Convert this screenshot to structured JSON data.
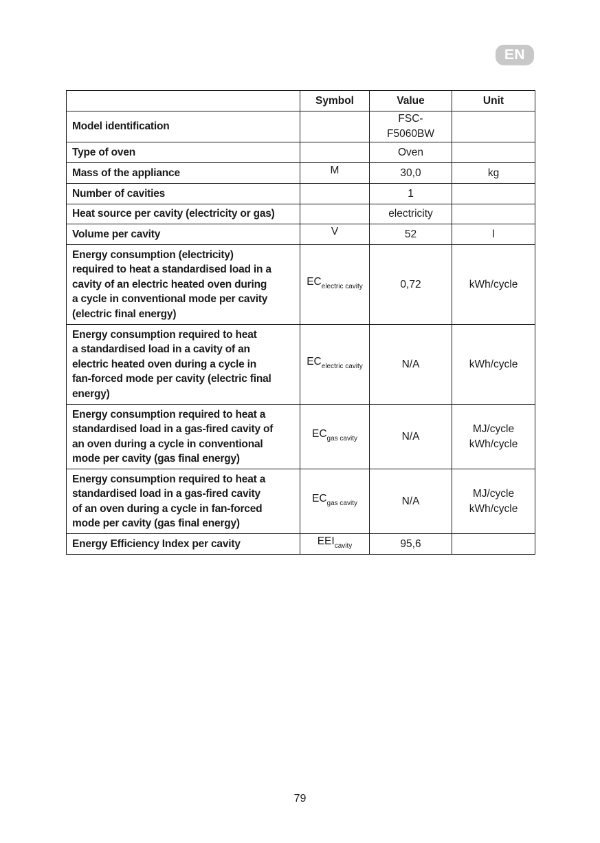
{
  "language_badge": "EN",
  "table": {
    "headers": [
      "",
      "Symbol",
      "Value",
      "Unit"
    ],
    "rows": [
      {
        "label": "Model identification",
        "symbol": "",
        "symbol_sub": "",
        "value": "FSC-F5060BW",
        "unit": ""
      },
      {
        "label": "Type of oven",
        "symbol": "",
        "symbol_sub": "",
        "value": "Oven",
        "unit": ""
      },
      {
        "label": "Mass of the appliance",
        "symbol": "M",
        "symbol_sub": "",
        "value": "30,0",
        "unit": "kg"
      },
      {
        "label": "Number of cavities",
        "symbol": "",
        "symbol_sub": "",
        "value": "1",
        "unit": ""
      },
      {
        "label": "Heat source per cavity (electricity or gas)",
        "symbol": "",
        "symbol_sub": "",
        "value": "electricity",
        "unit": ""
      },
      {
        "label": "Volume per cavity",
        "symbol": "V",
        "symbol_sub": "",
        "value": "52",
        "unit": "l"
      },
      {
        "label": "Energy consumption (electricity)\nrequired to heat a standardised load in a\ncavity of an electric heated oven during\na cycle in conventional mode per cavity\n(electric final energy)",
        "symbol": "EC",
        "symbol_sub": "electric cavity",
        "value": "0,72",
        "unit": "kWh/cycle"
      },
      {
        "label": "Energy consumption required to heat\na standardised load in a cavity of an\nelectric heated oven during a cycle in\nfan-forced mode per cavity (electric final\nenergy)",
        "symbol": "EC",
        "symbol_sub": "electric cavity",
        "value": "N/A",
        "unit": "kWh/cycle"
      },
      {
        "label": "Energy consumption required to heat a\nstandardised load in a gas-fired cavity of\nan oven during a cycle in conventional\nmode per cavity (gas final energy)",
        "symbol": "EC",
        "symbol_sub": "gas cavity",
        "value": "N/A",
        "unit": "MJ/cycle\nkWh/cycle"
      },
      {
        "label": "Energy consumption required to heat a\nstandardised load in a gas-fired cavity\nof an oven during a cycle in fan-forced\nmode per cavity (gas final energy)",
        "symbol": "EC",
        "symbol_sub": "gas cavity",
        "value": "N/A",
        "unit": "MJ/cycle\nkWh/cycle"
      },
      {
        "label": "Energy Efficiency Index per cavity",
        "symbol": "EEI",
        "symbol_sub": "cavity",
        "value": "95,6",
        "unit": ""
      }
    ]
  },
  "page_number": "79"
}
